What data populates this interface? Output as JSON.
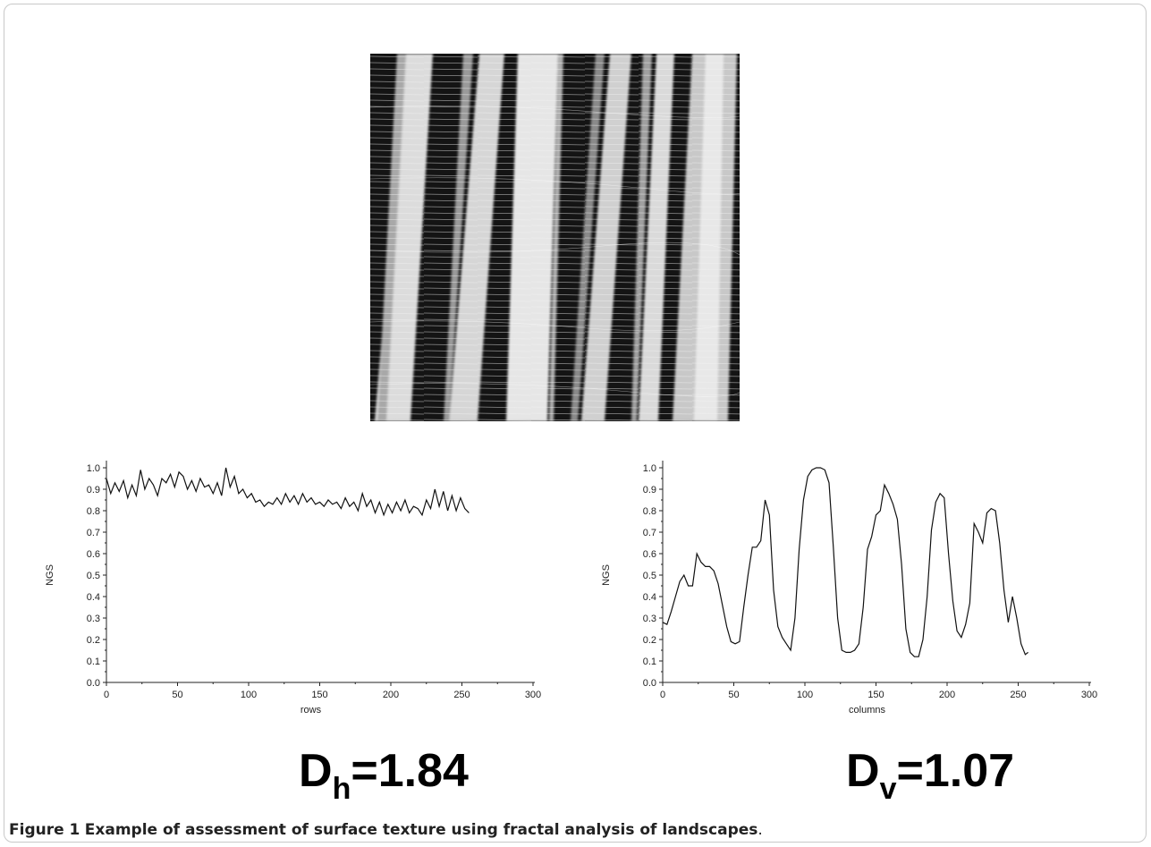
{
  "caption": {
    "label": "Figure 1",
    "text": "Example of assessment of surface texture using fractal analysis of landscapes",
    "end": "."
  },
  "left_label": {
    "base": "D",
    "sub": "h",
    "value": "=1.84"
  },
  "right_label": {
    "base": "D",
    "sub": "v",
    "value": "=1.07"
  },
  "chart_data": [
    {
      "type": "line",
      "xlabel": "rows",
      "ylabel": "NGS",
      "xlim": [
        0,
        300
      ],
      "ylim": [
        0,
        1.0
      ],
      "xticks": [
        0,
        50,
        100,
        150,
        200,
        250,
        300
      ],
      "yticks": [
        0.0,
        0.1,
        0.2,
        0.3,
        0.4,
        0.5,
        0.6,
        0.7,
        0.8,
        0.9,
        1.0
      ],
      "grid": false,
      "series": [
        {
          "x": [
            0,
            3,
            6,
            9,
            12,
            15,
            18,
            21,
            24,
            27,
            30,
            33,
            36,
            39,
            42,
            45,
            48,
            51,
            54,
            57,
            60,
            63,
            66,
            69,
            72,
            75,
            78,
            81,
            84,
            87,
            90,
            93,
            96,
            99,
            102,
            105,
            108,
            111,
            114,
            117,
            120,
            123,
            126,
            129,
            132,
            135,
            138,
            141,
            144,
            147,
            150,
            153,
            156,
            159,
            162,
            165,
            168,
            171,
            174,
            177,
            180,
            183,
            186,
            189,
            192,
            195,
            198,
            201,
            204,
            207,
            210,
            213,
            216,
            219,
            222,
            225,
            228,
            231,
            234,
            237,
            240,
            243,
            246,
            249,
            252,
            255
          ],
          "y": [
            0.95,
            0.88,
            0.93,
            0.89,
            0.94,
            0.86,
            0.92,
            0.87,
            0.99,
            0.9,
            0.95,
            0.92,
            0.87,
            0.95,
            0.93,
            0.97,
            0.91,
            0.98,
            0.96,
            0.9,
            0.94,
            0.89,
            0.95,
            0.91,
            0.92,
            0.88,
            0.93,
            0.87,
            1.0,
            0.91,
            0.96,
            0.88,
            0.9,
            0.86,
            0.88,
            0.84,
            0.85,
            0.82,
            0.84,
            0.83,
            0.86,
            0.83,
            0.88,
            0.84,
            0.87,
            0.83,
            0.88,
            0.84,
            0.86,
            0.83,
            0.84,
            0.82,
            0.85,
            0.83,
            0.84,
            0.81,
            0.86,
            0.82,
            0.84,
            0.8,
            0.88,
            0.82,
            0.85,
            0.79,
            0.84,
            0.78,
            0.83,
            0.79,
            0.84,
            0.8,
            0.85,
            0.79,
            0.82,
            0.81,
            0.78,
            0.85,
            0.81,
            0.9,
            0.82,
            0.89,
            0.8,
            0.87,
            0.8,
            0.86,
            0.81,
            0.79
          ]
        }
      ]
    },
    {
      "type": "line",
      "xlabel": "columns",
      "ylabel": "NGS",
      "xlim": [
        0,
        300
      ],
      "ylim": [
        0,
        1.0
      ],
      "xticks": [
        0,
        50,
        100,
        150,
        200,
        250,
        300
      ],
      "yticks": [
        0.0,
        0.1,
        0.2,
        0.3,
        0.4,
        0.5,
        0.6,
        0.7,
        0.8,
        0.9,
        1.0
      ],
      "grid": false,
      "series": [
        {
          "x": [
            0,
            3,
            6,
            9,
            12,
            15,
            18,
            21,
            24,
            27,
            30,
            33,
            36,
            39,
            42,
            45,
            48,
            51,
            54,
            57,
            60,
            63,
            66,
            69,
            72,
            75,
            78,
            81,
            84,
            87,
            90,
            93,
            96,
            99,
            102,
            105,
            108,
            111,
            114,
            117,
            120,
            123,
            126,
            129,
            132,
            135,
            138,
            141,
            144,
            147,
            150,
            153,
            156,
            159,
            162,
            165,
            168,
            171,
            174,
            177,
            180,
            183,
            186,
            189,
            192,
            195,
            198,
            201,
            204,
            207,
            210,
            213,
            216,
            219,
            222,
            225,
            228,
            231,
            234,
            237,
            240,
            243,
            246,
            249,
            252,
            255,
            257
          ],
          "y": [
            0.28,
            0.27,
            0.33,
            0.4,
            0.47,
            0.5,
            0.45,
            0.45,
            0.6,
            0.56,
            0.54,
            0.54,
            0.52,
            0.46,
            0.36,
            0.26,
            0.19,
            0.18,
            0.19,
            0.35,
            0.5,
            0.63,
            0.63,
            0.66,
            0.85,
            0.78,
            0.43,
            0.26,
            0.21,
            0.18,
            0.15,
            0.3,
            0.62,
            0.85,
            0.96,
            0.99,
            1.0,
            1.0,
            0.99,
            0.93,
            0.63,
            0.3,
            0.15,
            0.14,
            0.14,
            0.15,
            0.18,
            0.35,
            0.62,
            0.68,
            0.78,
            0.8,
            0.92,
            0.88,
            0.83,
            0.76,
            0.55,
            0.25,
            0.14,
            0.12,
            0.12,
            0.2,
            0.4,
            0.71,
            0.84,
            0.88,
            0.86,
            0.6,
            0.38,
            0.24,
            0.21,
            0.27,
            0.37,
            0.74,
            0.7,
            0.65,
            0.79,
            0.81,
            0.8,
            0.65,
            0.43,
            0.28,
            0.4,
            0.3,
            0.18,
            0.13,
            0.14
          ]
        }
      ]
    }
  ]
}
